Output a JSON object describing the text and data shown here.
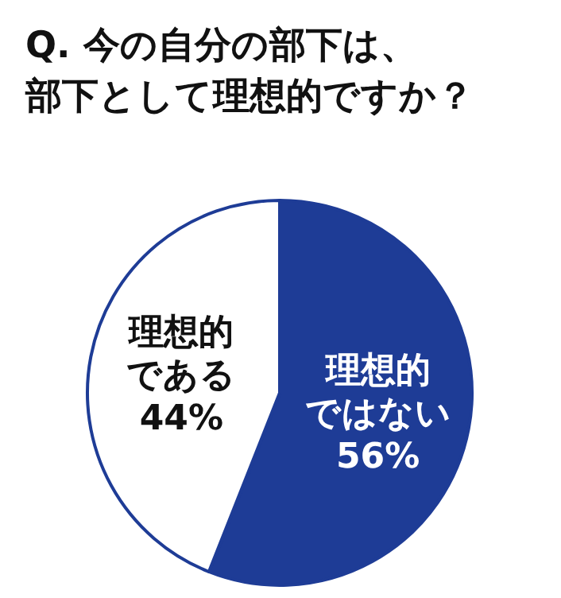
{
  "chart_data": {
    "type": "pie",
    "title": "Q. 今の自分の部下は、部下として理想的ですか？",
    "categories": [
      "理想的ではない",
      "理想的である"
    ],
    "values": [
      56,
      44
    ],
    "colors": [
      "#1e3c96",
      "#ffffff"
    ],
    "value_labels": [
      "56%",
      "44%"
    ]
  }
}
